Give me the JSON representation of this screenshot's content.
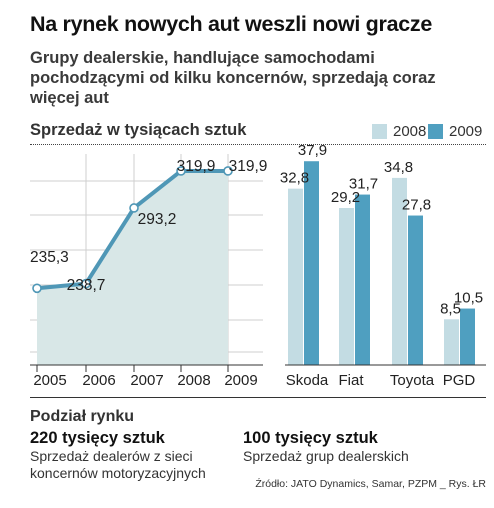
{
  "title": "Na rynek nowych aut weszli nowi gracze",
  "subtitle": "Grupy dealerskie, handlujące samochodami pochodzącymi od kilku koncernów, sprzedają coraz więcej aut",
  "chart_section_title": "Sprzedaż w tysiącach sztuk",
  "colors": {
    "line": "#4f97b6",
    "area": "#d8e7e7",
    "bar_2008": "#c3dce3",
    "bar_2009": "#4f9fc0"
  },
  "chart_data": [
    {
      "type": "line",
      "x": [
        "2005",
        "2006",
        "2007",
        "2008",
        "2009"
      ],
      "series": [
        {
          "values": [
            235.3,
            238.7,
            293.2,
            319.9,
            319.9
          ],
          "labels": [
            "235,3",
            "238,7",
            "293,2",
            "319,9",
            "319,9"
          ]
        }
      ],
      "grid": true,
      "area_fill": true
    },
    {
      "type": "bar",
      "categories": [
        "Skoda",
        "Fiat",
        "Toyota",
        "PGD"
      ],
      "series": [
        {
          "name": "2008",
          "values": [
            32.8,
            29.2,
            34.8,
            8.5
          ],
          "labels": [
            "32,8",
            "29,2",
            "34,8",
            "8,5"
          ]
        },
        {
          "name": "2009",
          "values": [
            37.9,
            31.7,
            27.8,
            10.5
          ],
          "labels": [
            "37,9",
            "31,7",
            "27,8",
            "10,5"
          ]
        }
      ],
      "legend": "top-right"
    }
  ],
  "market_share": {
    "title": "Podział rynku",
    "items": [
      {
        "value": "220 tysięcy sztuk",
        "description": "Sprzedaż dealerów z sieci koncernów motoryzacyjnych"
      },
      {
        "value": "100 tysięcy sztuk",
        "description": "Sprzedaż grup dealerskich"
      }
    ]
  },
  "source": "Źródło: JATO Dynamics, Samar, PZPM _ Rys. ŁR"
}
